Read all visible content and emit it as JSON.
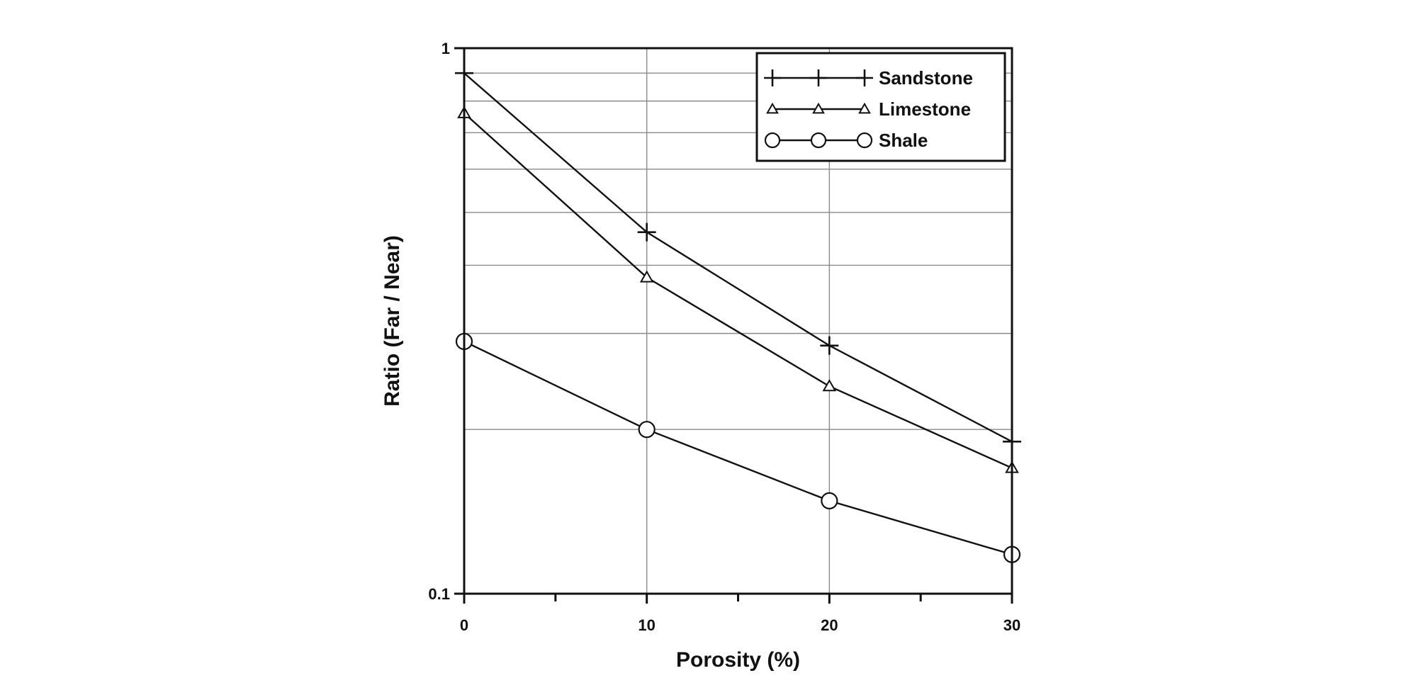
{
  "chart_data": {
    "type": "line",
    "title": "",
    "xlabel": "Porosity (%)",
    "ylabel": "Ratio (Far / Near)",
    "xlim": [
      0,
      30
    ],
    "ylim": [
      0.1,
      1
    ],
    "y_scale": "log",
    "grid": true,
    "legend_position": "top-right",
    "x_ticks": [
      0,
      10,
      20,
      30
    ],
    "x_tick_labels": [
      "0",
      "10",
      "20",
      "30"
    ],
    "x_minor_ticks": [
      5,
      15,
      25
    ],
    "y_tick_labels": [
      {
        "value": 1,
        "label": "1"
      },
      {
        "value": 0.1,
        "label": "0.1"
      }
    ],
    "y_gridlines": [
      0.9,
      0.8,
      0.7,
      0.6,
      0.5,
      0.4,
      0.3,
      0.2
    ],
    "line_color": "#111111",
    "series": [
      {
        "name": "Sandstone",
        "marker": "plus",
        "x": [
          0,
          10,
          20,
          30
        ],
        "y": [
          0.9,
          0.46,
          0.285,
          0.19
        ]
      },
      {
        "name": "Limestone",
        "marker": "triangle",
        "x": [
          0,
          10,
          20,
          30
        ],
        "y": [
          0.76,
          0.38,
          0.24,
          0.17
        ]
      },
      {
        "name": "Shale",
        "marker": "circle",
        "x": [
          0,
          10,
          20,
          30
        ],
        "y": [
          0.29,
          0.2,
          0.148,
          0.118
        ]
      }
    ]
  }
}
